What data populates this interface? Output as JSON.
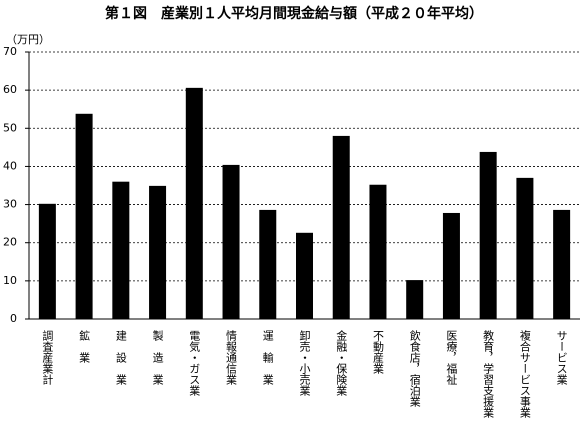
{
  "chart_data": {
    "type": "bar",
    "title": "第１図　産業別１人平均月間現金給与額（平成２０年平均）",
    "y_axis_label": "（万円）",
    "categories": [
      "調査産業計",
      "鉱　業",
      "建　設　業",
      "製　造　業",
      "電気・ガス業",
      "情報通信業",
      "運　輸　業",
      "卸売・小売業",
      "金融・保険業",
      "不動産業",
      "飲食店，宿泊業",
      "医療，福祉",
      "教育，学習支援業",
      "複合サービス事業",
      "サービス業"
    ],
    "values": [
      30.2,
      53.8,
      36.0,
      34.9,
      60.6,
      40.4,
      28.6,
      22.6,
      48.0,
      35.2,
      10.2,
      27.8,
      43.8,
      37.0,
      28.6
    ],
    "color": "#000000",
    "ylim": [
      0,
      70
    ],
    "yticks": [
      0,
      10,
      20,
      30,
      40,
      50,
      60,
      70
    ],
    "grid": true
  }
}
